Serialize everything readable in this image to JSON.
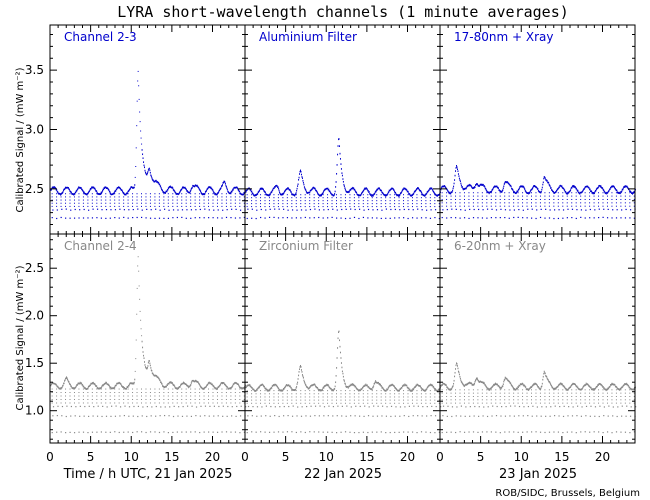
{
  "title": "LYRA short-wavelength channels (1 minute averages)",
  "credit": "ROB/SIDC, Brussels, Belgium",
  "colors": {
    "top": "#0000cc",
    "bottom": "#888888",
    "axis": "#000000"
  },
  "chart_data": {
    "type": "scatter",
    "ylabel_top": "Calibrated Signal / (mW m⁻²)",
    "ylabel_bottom": "Calibrated Signal / (mW m⁻²)",
    "days": [
      {
        "xlabel": "Time / h UTC, 21 Jan 2025"
      },
      {
        "xlabel": "22 Jan 2025"
      },
      {
        "xlabel": "23 Jan 2025"
      }
    ],
    "xticks": [
      0,
      5,
      10,
      15,
      20
    ],
    "xlim": [
      0,
      24
    ],
    "rows": [
      {
        "ylim": [
          2.12,
          3.88
        ],
        "yticks": [
          "2.5",
          "3.0",
          "3.5"
        ],
        "ytick_values": [
          2.5,
          3.0,
          3.5
        ],
        "panels": [
          {
            "label": "Channel 2-3",
            "baseline": 2.49,
            "dips": [
              2.26,
              2.33
            ],
            "peaks": [
              {
                "t": 10.8,
                "peak": 3.52,
                "width": 0.35,
                "tail": 1.2
              },
              {
                "t": 12.2,
                "peak": 2.66,
                "width": 0.4,
                "tail": 2.0
              },
              {
                "t": 17.5,
                "peak": 2.54,
                "width": 0.5,
                "tail": 1.0
              },
              {
                "t": 21.5,
                "peak": 2.55,
                "width": 0.5,
                "tail": 1.0
              }
            ]
          },
          {
            "label": "Aluminium Filter",
            "baseline": 2.48,
            "dips": [
              2.26,
              2.33
            ],
            "peaks": [
              {
                "t": 6.8,
                "peak": 2.63,
                "width": 0.5,
                "tail": 1.2
              },
              {
                "t": 11.5,
                "peak": 2.91,
                "width": 0.4,
                "tail": 1.0
              },
              {
                "t": 4.0,
                "peak": 2.52,
                "width": 0.5,
                "tail": 0.8
              }
            ]
          },
          {
            "label": "17-80nm + Xray",
            "baseline": 2.5,
            "dips": [
              2.26,
              2.33
            ],
            "peaks": [
              {
                "t": 2.0,
                "peak": 2.67,
                "width": 0.4,
                "tail": 1.5
              },
              {
                "t": 4.5,
                "peak": 2.58,
                "width": 0.5,
                "tail": 1.0
              },
              {
                "t": 8.0,
                "peak": 2.57,
                "width": 0.5,
                "tail": 1.0
              },
              {
                "t": 12.8,
                "peak": 2.61,
                "width": 0.4,
                "tail": 1.0
              }
            ]
          }
        ]
      },
      {
        "ylim": [
          0.66,
          2.86
        ],
        "yticks": [
          "1.0",
          "1.5",
          "2.0",
          "2.5"
        ],
        "ytick_values": [
          1.0,
          1.5,
          2.0,
          2.5
        ],
        "panels": [
          {
            "label": "Channel 2-4",
            "baseline": 1.27,
            "dips": [
              0.78,
              0.95,
              1.05
            ],
            "peaks": [
              {
                "t": 10.8,
                "peak": 2.66,
                "width": 0.35,
                "tail": 1.2
              },
              {
                "t": 12.2,
                "peak": 1.5,
                "width": 0.4,
                "tail": 2.0
              },
              {
                "t": 17.5,
                "peak": 1.34,
                "width": 0.5,
                "tail": 1.0
              },
              {
                "t": 2.0,
                "peak": 1.33,
                "width": 0.5,
                "tail": 0.8
              }
            ]
          },
          {
            "label": "Zirconium Filter",
            "baseline": 1.25,
            "dips": [
              0.78,
              0.95,
              1.05
            ],
            "peaks": [
              {
                "t": 6.8,
                "peak": 1.45,
                "width": 0.5,
                "tail": 1.2
              },
              {
                "t": 11.5,
                "peak": 1.83,
                "width": 0.4,
                "tail": 1.0
              },
              {
                "t": 16.0,
                "peak": 1.32,
                "width": 0.5,
                "tail": 0.8
              }
            ]
          },
          {
            "label": "6-20nm + Xray",
            "baseline": 1.26,
            "dips": [
              0.78,
              0.95,
              1.05
            ],
            "peaks": [
              {
                "t": 2.0,
                "peak": 1.48,
                "width": 0.4,
                "tail": 1.5
              },
              {
                "t": 4.5,
                "peak": 1.38,
                "width": 0.5,
                "tail": 1.0
              },
              {
                "t": 8.0,
                "peak": 1.36,
                "width": 0.5,
                "tail": 1.0
              },
              {
                "t": 12.8,
                "peak": 1.42,
                "width": 0.4,
                "tail": 1.0
              }
            ]
          }
        ]
      }
    ]
  }
}
